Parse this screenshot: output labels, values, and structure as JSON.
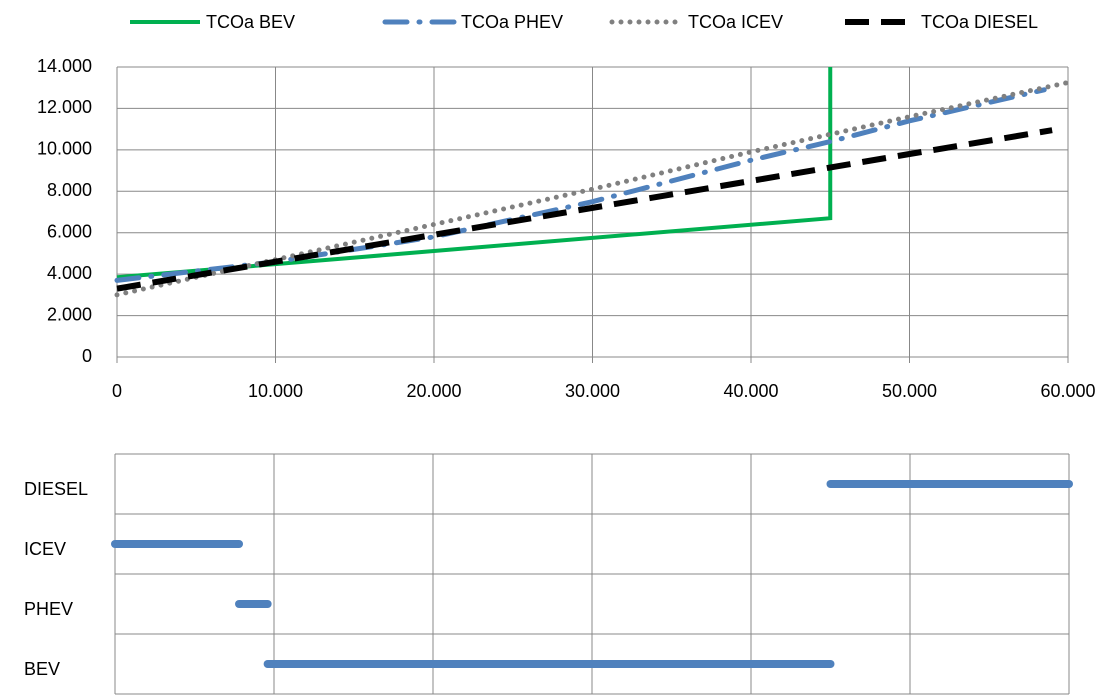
{
  "chart_data": [
    {
      "type": "line",
      "series": [
        {
          "name": "TCOa BEV",
          "color": "#00b050",
          "dash": "solid",
          "x": [
            0,
            45000,
            45000
          ],
          "values": [
            3850,
            6700,
            14000
          ]
        },
        {
          "name": "TCOa PHEV",
          "color": "#4f81bd",
          "dash": "dash-dot",
          "x": [
            0,
            10000,
            20000,
            30000,
            40000,
            45000,
            50000,
            58500
          ],
          "values": [
            3700,
            4600,
            5800,
            7500,
            9500,
            10400,
            11400,
            12900
          ]
        },
        {
          "name": "TCOa ICEV",
          "color": "#808080",
          "dash": "dot",
          "x": [
            0,
            10000,
            20000,
            30000,
            40000,
            50000,
            60000
          ],
          "values": [
            3000,
            4700,
            6400,
            8100,
            9900,
            11600,
            13250
          ]
        },
        {
          "name": "TCOa DIESEL",
          "color": "#000000",
          "dash": "dash",
          "x": [
            0,
            10000,
            20000,
            30000,
            40000,
            50000,
            59000
          ],
          "values": [
            3300,
            4600,
            5900,
            7200,
            8500,
            9800,
            10950
          ]
        }
      ],
      "xlim": [
        0,
        60000
      ],
      "xticks": [
        0,
        {
          "value": 10000,
          "label": "10.000"
        },
        {
          "value": 20000,
          "label": "20.000"
        },
        {
          "value": 30000,
          "label": "30.000"
        },
        {
          "value": 40000,
          "label": "40.000"
        },
        {
          "value": 50000,
          "label": "50.000"
        },
        {
          "value": 60000,
          "label": "60.000"
        }
      ],
      "ylim": [
        0,
        14000
      ],
      "yticks": [
        0,
        {
          "value": 2000,
          "label": "2.000"
        },
        {
          "value": 4000,
          "label": "4.000"
        },
        {
          "value": 6000,
          "label": "6.000"
        },
        {
          "value": 8000,
          "label": "8.000"
        },
        {
          "value": 10000,
          "label": "10.000"
        },
        {
          "value": 12000,
          "label": "12.000"
        },
        {
          "value": 14000,
          "label": "14.000"
        }
      ],
      "grid": true,
      "legend": "top"
    },
    {
      "type": "range",
      "categories": [
        "DIESEL",
        "ICEV",
        "PHEV",
        "BEV"
      ],
      "starts": [
        45000,
        0,
        7800,
        9600
      ],
      "ends": [
        60000,
        7800,
        9600,
        45000
      ],
      "color": "#4f81bd",
      "xlim": [
        0,
        60000
      ],
      "xticks": [
        0,
        10000,
        20000,
        30000,
        40000,
        50000,
        60000
      ],
      "grid": true
    }
  ]
}
